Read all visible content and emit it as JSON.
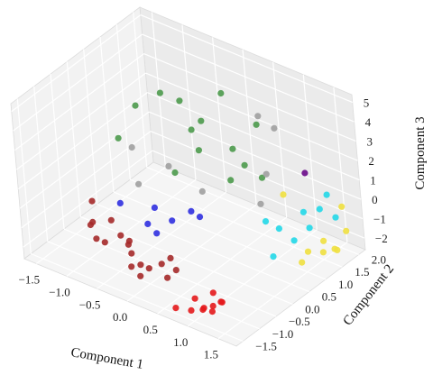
{
  "chart_data": {
    "type": "scatter",
    "projection": "3d",
    "xlabel": "Component 1",
    "ylabel": "Component 2",
    "zlabel": "Component 3",
    "xlim": [
      -1.7,
      1.8
    ],
    "ylim": [
      -1.7,
      2.2
    ],
    "zlim": [
      -2.6,
      5.4
    ],
    "x_ticks": [
      "−1.5",
      "−1.0",
      "−0.5",
      "0.0",
      "0.5",
      "1.0",
      "1.5"
    ],
    "y_ticks": [
      "−1.5",
      "−1.0",
      "−0.5",
      "0.0",
      "0.5",
      "1.0",
      "1.5",
      "2.0"
    ],
    "z_ticks": [
      "−2",
      "−1",
      "0",
      "1",
      "2",
      "3",
      "4",
      "5"
    ],
    "grid": true,
    "legend": "none",
    "series": [
      {
        "color": "#e41a1c",
        "points": [
          [
            1.0,
            -1.2,
            -2.3
          ],
          [
            1.1,
            -1.1,
            -2.2
          ],
          [
            1.2,
            -1.3,
            -2.1
          ],
          [
            0.9,
            -1.4,
            -2.3
          ],
          [
            1.2,
            -1.0,
            -2.0
          ],
          [
            0.8,
            -1.1,
            -2.2
          ],
          [
            1.3,
            -1.2,
            -1.6
          ],
          [
            1.0,
            -0.9,
            -1.9
          ],
          [
            0.7,
            -1.5,
            -2.3
          ],
          [
            1.1,
            -1.4,
            -2.0
          ]
        ]
      },
      {
        "color": "#a52a2a",
        "points": [
          [
            -1.3,
            -0.3,
            -0.9
          ],
          [
            -1.3,
            -0.4,
            -2.0
          ],
          [
            -1.2,
            -0.5,
            -1.6
          ],
          [
            -1.0,
            -0.3,
            -1.5
          ],
          [
            -1.1,
            -0.6,
            -2.2
          ],
          [
            -0.8,
            -0.4,
            -1.9
          ],
          [
            -0.5,
            -0.7,
            -1.6
          ],
          [
            -0.4,
            -0.8,
            -1.8
          ],
          [
            -0.2,
            -0.9,
            -2.0
          ],
          [
            0.0,
            -1.0,
            -1.8
          ],
          [
            0.1,
            -0.8,
            -1.7
          ],
          [
            0.2,
            -0.7,
            -1.4
          ],
          [
            0.4,
            -0.9,
            -1.5
          ],
          [
            -0.3,
            -1.0,
            -2.1
          ],
          [
            -0.1,
            -1.1,
            -2.2
          ],
          [
            0.3,
            -1.0,
            -1.9
          ],
          [
            -0.6,
            -0.5,
            -1.8
          ],
          [
            -0.9,
            -0.7,
            -2.0
          ]
        ]
      },
      {
        "color": "#3030e0",
        "points": [
          [
            -1.0,
            0.0,
            -1.0
          ],
          [
            -0.6,
            0.3,
            -1.1
          ],
          [
            -0.5,
            -0.1,
            -1.3
          ],
          [
            -0.2,
            0.1,
            -1.0
          ],
          [
            -0.1,
            0.5,
            -0.9
          ],
          [
            0.1,
            0.4,
            -0.8
          ],
          [
            -0.3,
            -0.2,
            -1.4
          ]
        ]
      },
      {
        "color": "#4c9a4c",
        "points": [
          [
            -1.2,
            1.0,
            2.5
          ],
          [
            -1.0,
            1.4,
            2.9
          ],
          [
            -0.8,
            1.6,
            2.5
          ],
          [
            -0.7,
            1.7,
            1.0
          ],
          [
            -0.4,
            1.5,
            2.1
          ],
          [
            -0.2,
            1.8,
            3.4
          ],
          [
            -0.3,
            1.2,
            1.1
          ],
          [
            -0.5,
            0.8,
            0.2
          ],
          [
            0.1,
            1.5,
            1.3
          ],
          [
            0.2,
            1.2,
            0.2
          ],
          [
            0.4,
            1.3,
            1.1
          ],
          [
            0.5,
            1.6,
            0.2
          ],
          [
            -1.3,
            0.6,
            1.2
          ],
          [
            0.3,
            1.9,
            2.3
          ]
        ]
      },
      {
        "color": "#a0a0a0",
        "points": [
          [
            -1.2,
            0.8,
            0.6
          ],
          [
            -0.9,
            0.4,
            -0.4
          ],
          [
            -0.6,
            0.8,
            0.4
          ],
          [
            0.0,
            0.7,
            0.0
          ],
          [
            0.4,
            1.8,
            3.0
          ],
          [
            0.6,
            1.9,
            2.5
          ],
          [
            0.7,
            1.4,
            0.9
          ],
          [
            0.8,
            1.0,
            0.0
          ]
        ]
      },
      {
        "color": "#22d8e8",
        "points": [
          [
            1.1,
            0.6,
            0.0
          ],
          [
            1.2,
            0.8,
            -0.5
          ],
          [
            1.3,
            0.4,
            -1.3
          ],
          [
            1.5,
            0.7,
            -0.6
          ],
          [
            1.6,
            1.0,
            -0.2
          ],
          [
            1.4,
            1.2,
            0.1
          ],
          [
            1.4,
            1.9,
            0.1
          ],
          [
            1.7,
            1.6,
            -0.3
          ],
          [
            1.5,
            1.5,
            0.0
          ]
        ]
      },
      {
        "color": "#f0e040",
        "points": [
          [
            1.2,
            1.0,
            1.0
          ],
          [
            1.6,
            0.7,
            -1.6
          ],
          [
            1.7,
            1.2,
            -1.0
          ],
          [
            1.7,
            1.5,
            -1.8
          ],
          [
            1.8,
            1.0,
            -1.2
          ],
          [
            1.7,
            1.8,
            0.0
          ],
          [
            1.8,
            1.7,
            -1.0
          ],
          [
            1.6,
            0.9,
            -1.3
          ],
          [
            1.8,
            1.4,
            -1.6
          ]
        ]
      },
      {
        "color": "#6a0a8a",
        "points": [
          [
            1.3,
            1.5,
            1.6
          ]
        ]
      }
    ]
  }
}
